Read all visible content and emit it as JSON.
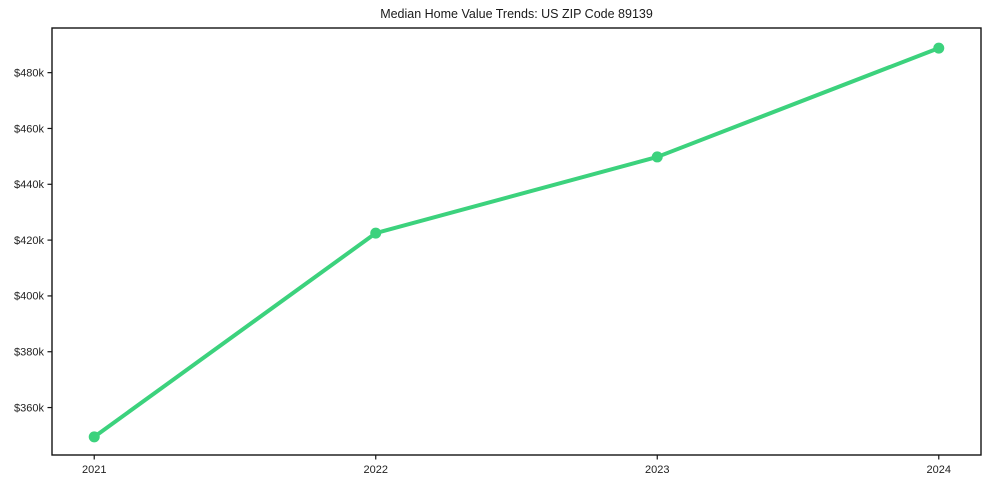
{
  "page": {
    "background_color": "#ffffff"
  },
  "chart_data": {
    "type": "line",
    "title": "Median Home Value Trends: US ZIP Code 89139",
    "series": [
      {
        "name": "Median Home Value",
        "x": [
          2021,
          2022,
          2023,
          2024
        ],
        "values": [
          349500,
          422500,
          449800,
          488800
        ]
      }
    ],
    "xlabel": "",
    "ylabel": "",
    "xlim": [
      2020.85,
      2024.15
    ],
    "ylim": [
      343000,
      496000
    ],
    "xtick_values": [
      2021,
      2022,
      2023,
      2024
    ],
    "xtick_labels": [
      "2021",
      "2022",
      "2023",
      "2024"
    ],
    "ytick_values": [
      360000,
      380000,
      400000,
      420000,
      440000,
      460000,
      480000
    ],
    "ytick_labels": [
      "$360k",
      "$380k",
      "$400k",
      "$420k",
      "$440k",
      "$460k",
      "$480k"
    ],
    "grid": false,
    "legend_position": "none",
    "line_color": "#3cd27d",
    "marker_shape": "circle",
    "axis_color": "#141414",
    "text_color": "#222222"
  }
}
